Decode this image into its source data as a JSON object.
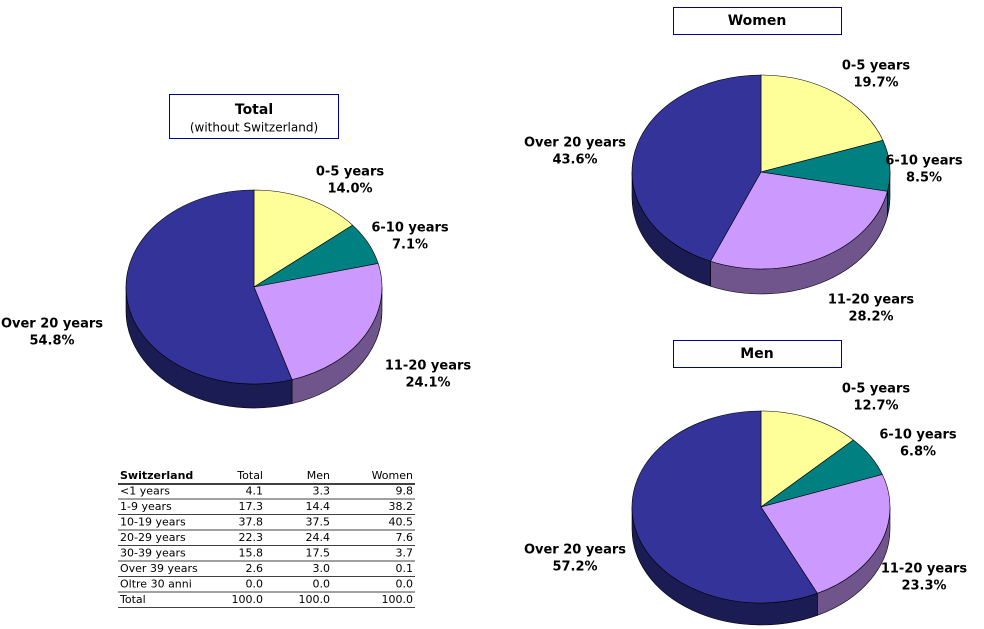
{
  "chart_data": [
    {
      "type": "pie",
      "title": "Total",
      "subtitle": "(without Switzerland)",
      "categories": [
        "0-5 years",
        "6-10 years",
        "11-20 years",
        "Over 20 years"
      ],
      "values": [
        14.0,
        7.1,
        24.1,
        54.8
      ],
      "value_labels": [
        "14.0%",
        "7.1%",
        "24.1%",
        "54.8%"
      ],
      "colors": [
        "#ffff99",
        "#008080",
        "#cc99ff",
        "#333399"
      ]
    },
    {
      "type": "pie",
      "title": "Women",
      "categories": [
        "0-5 years",
        "6-10 years",
        "11-20 years",
        "Over 20 years"
      ],
      "values": [
        19.7,
        8.5,
        28.2,
        43.6
      ],
      "value_labels": [
        "19.7%",
        "8.5%",
        "28.2%",
        "43.6%"
      ],
      "colors": [
        "#ffff99",
        "#008080",
        "#cc99ff",
        "#333399"
      ]
    },
    {
      "type": "pie",
      "title": "Men",
      "categories": [
        "0-5 years",
        "6-10 years",
        "11-20 years",
        "Over 20 years"
      ],
      "values": [
        12.7,
        6.8,
        23.3,
        57.2
      ],
      "value_labels": [
        "12.7%",
        "6.8%",
        "23.3%",
        "57.2%"
      ],
      "colors": [
        "#ffff99",
        "#008080",
        "#cc99ff",
        "#333399"
      ]
    }
  ],
  "table": {
    "header": [
      "Switzerland",
      "Total",
      "Men",
      "Women"
    ],
    "rows": [
      [
        "<1 years",
        "4.1",
        "3.3",
        "9.8"
      ],
      [
        "1-9 years",
        "17.3",
        "14.4",
        "38.2"
      ],
      [
        "10-19 years",
        "37.8",
        "37.5",
        "40.5"
      ],
      [
        "20-29 years",
        "22.3",
        "24.4",
        "7.6"
      ],
      [
        "30-39 years",
        "15.8",
        "17.5",
        "3.7"
      ],
      [
        "Over 39 years",
        "2.6",
        "3.0",
        "0.1"
      ],
      [
        "Oltre 30 anni",
        "0.0",
        "0.0",
        "0.0"
      ],
      [
        "Total",
        "100.0",
        "100.0",
        "100.0"
      ]
    ]
  }
}
